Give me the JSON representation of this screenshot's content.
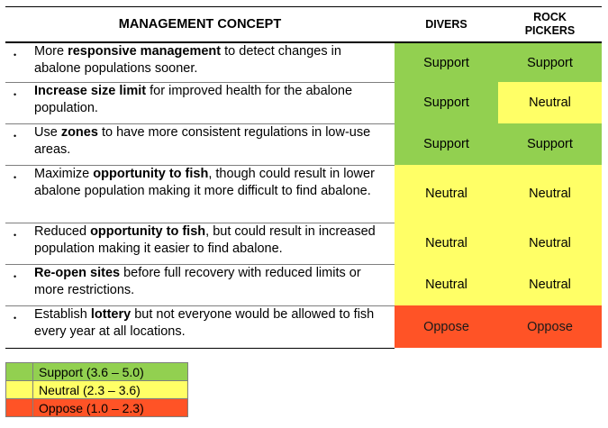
{
  "header": {
    "concept": "MANAGEMENT CONCEPT",
    "divers": "DIVERS",
    "rock_pickers_line1": "ROCK",
    "rock_pickers_line2": "PICKERS"
  },
  "colors": {
    "Support": "#92d050",
    "Neutral": "#ffff66",
    "Oppose": "#ff5326"
  },
  "rows": [
    {
      "bullet": "•",
      "before": "More ",
      "bold": "responsive management",
      "after": " to detect changes in abalone populations sooner.",
      "divers": "Support",
      "rock_pickers": "Support",
      "height": 44
    },
    {
      "bullet": "•",
      "before": "",
      "bold": "Increase size limit",
      "after": " for improved health for the abalone population.",
      "divers": "Support",
      "rock_pickers": "Neutral",
      "height": 46
    },
    {
      "bullet": "•",
      "before": "Use ",
      "bold": "zones",
      "after": " to have more consistent regulations in low-use areas.",
      "divers": "Support",
      "rock_pickers": "Support",
      "height": 46
    },
    {
      "bullet": "•",
      "before": "Maximize ",
      "bold": "opportunity to fish",
      "after": ", though could result in lower abalone population making it more difficult to find abalone.",
      "divers": "Neutral",
      "rock_pickers": "Neutral",
      "height": 64
    },
    {
      "bullet": "•",
      "before": "Reduced ",
      "bold": "opportunity to fish",
      "after": ", but could result in increased population making it easier to find abalone.",
      "divers": "Neutral",
      "rock_pickers": "Neutral",
      "height": 46
    },
    {
      "bullet": "•",
      "before": "",
      "bold": "Re-open sites",
      "after": " before full recovery with reduced limits or more restrictions.",
      "divers": "Neutral",
      "rock_pickers": "Neutral",
      "height": 46
    },
    {
      "bullet": "•",
      "before": "Establish ",
      "bold": "lottery",
      "after": " but not everyone would be allowed to fish every year at all locations.",
      "divers": "Oppose",
      "rock_pickers": "Oppose",
      "height": 47
    }
  ],
  "legend": [
    {
      "rating": "Support",
      "label": "Support (3.6 – 5.0)"
    },
    {
      "rating": "Neutral",
      "label": "Neutral (2.3 – 3.6)"
    },
    {
      "rating": "Oppose",
      "label": "Oppose (1.0 – 2.3)"
    }
  ]
}
